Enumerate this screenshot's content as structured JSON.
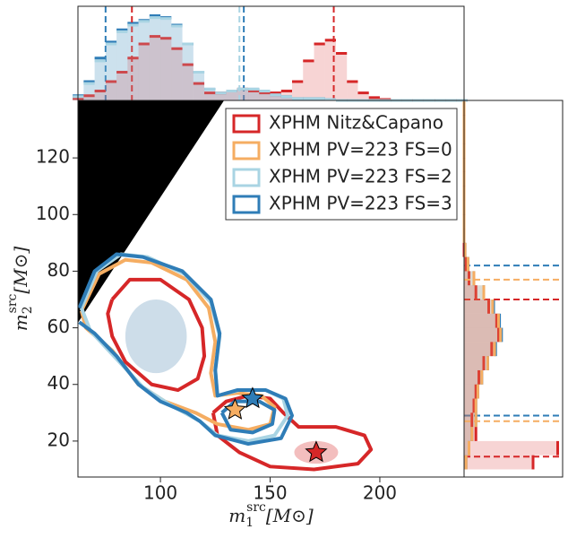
{
  "chart_data": [
    {
      "type": "contour",
      "xlabel": {
        "symbol": "m",
        "sup": "src",
        "sub": "1",
        "unit": "[M⊙]"
      },
      "ylabel": {
        "symbol": "m",
        "sup": "src",
        "sub": "2",
        "unit": "[M⊙]"
      },
      "xlim": [
        62.4,
        238.4
      ],
      "xticks": [
        100,
        150,
        200
      ],
      "ylim": [
        7.3,
        140.3
      ],
      "yticks": [
        20,
        40,
        60,
        80,
        100,
        120
      ],
      "legend": "upper right",
      "excluded_region": {
        "x": [
          62.4,
          62.4,
          129
        ],
        "y": [
          61.8,
          140.3,
          140.3
        ],
        "color": "#000000"
      },
      "density_blobs": [
        {
          "x": 98,
          "y": 57,
          "rx": 14,
          "ry": 13,
          "color": "#5b8db5"
        },
        {
          "x": 171,
          "y": 16,
          "rx": 10,
          "ry": 4,
          "color": "#d62728"
        }
      ],
      "series": [
        {
          "name": "XPHM Nitz&Capano",
          "color": "#d62728",
          "x": [
            78,
            86,
            100,
            113,
            119,
            120,
            117,
            108,
            96,
            84,
            78,
            76,
            78,
            null,
            124,
            130,
            140,
            150,
            156,
            163,
            180,
            193,
            196,
            190,
            170,
            150,
            136,
            126,
            124
          ],
          "y": [
            70,
            77,
            77,
            70,
            60,
            50,
            42,
            38,
            40,
            48,
            57,
            65,
            70,
            null,
            30,
            34,
            36,
            35,
            30,
            25,
            25,
            22,
            17,
            12,
            10,
            11,
            16,
            22,
            30
          ]
        },
        {
          "name": "XPHM PV=223 FS=0",
          "color": "#f5ad62",
          "x": [
            64,
            72,
            84,
            96,
            112,
            122,
            125,
            123,
            125,
            135,
            146,
            152,
            150,
            140,
            126,
            116,
            102,
            90,
            78,
            66,
            64
          ],
          "y": [
            66,
            79,
            84,
            83,
            77,
            67,
            55,
            44,
            36,
            37,
            36,
            32,
            26,
            24,
            26,
            30,
            34,
            40,
            52,
            60,
            66
          ]
        },
        {
          "name": "XPHM PV=223 FS=2",
          "color": "#a9d4e3",
          "x": [
            64,
            71,
            82,
            94,
            111,
            123,
            127,
            125,
            126,
            136,
            148,
            156,
            158,
            152,
            140,
            126,
            118,
            104,
            92,
            80,
            68,
            64
          ],
          "y": [
            67,
            80,
            86,
            85,
            79,
            69,
            57,
            45,
            36,
            38,
            38,
            35,
            29,
            22,
            20,
            22,
            27,
            33,
            39,
            49,
            59,
            67
          ]
        },
        {
          "name": "XPHM PV=223 FS=3",
          "color": "#2f7db7",
          "x": [
            63,
            70,
            80,
            92,
            110,
            123,
            127,
            125,
            126,
            135,
            148,
            157,
            160,
            155,
            140,
            125,
            118,
            112,
            100,
            90,
            80,
            70,
            63,
            null,
            128,
            134,
            145,
            152,
            151,
            142,
            132,
            128
          ],
          "y": [
            67,
            80,
            86,
            85,
            80,
            70,
            58,
            45,
            36,
            38,
            38,
            35,
            29,
            21,
            19,
            22,
            27,
            30,
            34,
            40,
            50,
            58,
            62,
            null,
            30,
            34,
            34,
            31,
            26,
            23,
            24,
            30
          ]
        }
      ],
      "markers": [
        {
          "x": 134,
          "y": 31,
          "color": "#f5ad62"
        },
        {
          "x": 142,
          "y": 35,
          "color": "#2f7db7"
        },
        {
          "x": 171,
          "y": 16,
          "color": "#d62728"
        }
      ]
    },
    {
      "type": "histogram",
      "orientation": "vertical",
      "xlim": [
        62.4,
        238.4
      ],
      "ylim": [
        0,
        1
      ],
      "bins": [
        60,
        65,
        70,
        75,
        80,
        85,
        90,
        95,
        100,
        105,
        110,
        115,
        120,
        125,
        130,
        135,
        140,
        145,
        150,
        155,
        160,
        165,
        170,
        175,
        180,
        185,
        190,
        195,
        200,
        205,
        210,
        215,
        220,
        225,
        230,
        235,
        240
      ],
      "series": [
        {
          "color": "#2f7db7",
          "quantiles": [
            75,
            138
          ],
          "values": [
            0.05,
            0.2,
            0.45,
            0.62,
            0.75,
            0.82,
            0.85,
            0.9,
            0.88,
            0.8,
            0.6,
            0.3,
            0.12,
            0.08,
            0.1,
            0.12,
            0.12,
            0.1,
            0.06,
            0.04,
            0.02,
            0.02,
            0.02,
            0.01,
            0,
            0,
            0,
            0,
            0,
            0,
            0,
            0,
            0,
            0,
            0,
            0
          ]
        },
        {
          "color": "#d62728",
          "quantiles": [
            87,
            179
          ],
          "values": [
            0.02,
            0.05,
            0.1,
            0.2,
            0.3,
            0.45,
            0.6,
            0.68,
            0.66,
            0.55,
            0.38,
            0.18,
            0.08,
            0.08,
            0.1,
            0.12,
            0.1,
            0.08,
            0.08,
            0.1,
            0.2,
            0.42,
            0.6,
            0.64,
            0.5,
            0.2,
            0.08,
            0.03,
            0.01,
            0,
            0,
            0,
            0,
            0,
            0,
            0
          ]
        },
        {
          "color": "#a9d4e3",
          "quantiles": [
            136
          ],
          "values": [
            0.04,
            0.18,
            0.42,
            0.6,
            0.73,
            0.8,
            0.84,
            0.88,
            0.87,
            0.79,
            0.6,
            0.3,
            0.12,
            0.08,
            0.1,
            0.12,
            0.12,
            0.1,
            0.06,
            0.04,
            0.02,
            0.02,
            0.02,
            0.01,
            0,
            0,
            0,
            0,
            0,
            0,
            0,
            0,
            0,
            0,
            0,
            0
          ]
        }
      ]
    },
    {
      "type": "histogram",
      "orientation": "horizontal",
      "xlim": [
        0,
        1
      ],
      "ylim": [
        7.3,
        140.3
      ],
      "bins": [
        10,
        15,
        20,
        25,
        30,
        35,
        40,
        45,
        50,
        55,
        60,
        65,
        70,
        75,
        80,
        85,
        90,
        95,
        100,
        105,
        110,
        115,
        120,
        125,
        130,
        135,
        140
      ],
      "series": [
        {
          "color": "#2f7db7",
          "quantiles": [
            29,
            82
          ],
          "values": [
            0.02,
            0.05,
            0.08,
            0.12,
            0.12,
            0.14,
            0.18,
            0.24,
            0.32,
            0.38,
            0.36,
            0.3,
            0.2,
            0.1,
            0.04,
            0.01,
            0,
            0,
            0,
            0,
            0,
            0,
            0,
            0,
            0,
            0
          ]
        },
        {
          "color": "#d62728",
          "quantiles": [
            14.5,
            70
          ],
          "values": [
            0.7,
            0.95,
            0.12,
            0.08,
            0.1,
            0.12,
            0.15,
            0.2,
            0.28,
            0.35,
            0.33,
            0.25,
            0.12,
            0.05,
            0.02,
            0,
            0,
            0,
            0,
            0,
            0,
            0,
            0,
            0,
            0,
            0
          ]
        },
        {
          "color": "#f5ad62",
          "quantiles": [
            27,
            77
          ],
          "values": [
            0.02,
            0.05,
            0.08,
            0.12,
            0.12,
            0.14,
            0.18,
            0.24,
            0.31,
            0.37,
            0.35,
            0.29,
            0.2,
            0.1,
            0.04,
            0.01,
            0,
            0,
            0,
            0,
            0,
            0,
            0,
            0,
            0,
            0
          ]
        }
      ]
    }
  ]
}
